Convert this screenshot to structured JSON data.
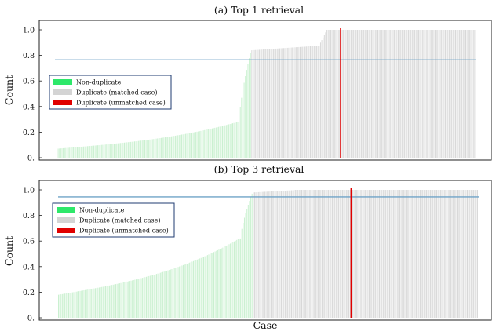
{
  "xlabel": "Case",
  "chart_data": [
    {
      "type": "bar",
      "title": "(a) Top 1 retrieval",
      "ylabel": "Count",
      "ylim": [
        0,
        1.0
      ],
      "yticks": [
        "0.",
        "0.2",
        "0.4",
        "0.6",
        "0.8",
        "1.0"
      ],
      "ytick_values": [
        0,
        0.2,
        0.4,
        0.6,
        0.8,
        1.0
      ],
      "n_cases": 330,
      "series": [
        {
          "name": "Non-duplicate",
          "color": "#c9f0cf",
          "case_range": [
            1,
            153
          ],
          "start_value": 0.07,
          "end_value": 0.28,
          "jump_end_value": 0.82
        },
        {
          "name": "Duplicate (matched case)",
          "color": "#d8d8d8",
          "case_range": [
            154,
            330
          ],
          "start_value": 0.84,
          "end_value": 0.88,
          "plateau_value": 1.0
        }
      ],
      "unmatched_case_line": {
        "name": "Duplicate (unmatched case)",
        "color": "#e00000",
        "case_position": 224
      },
      "reference_line": {
        "value": 0.765,
        "color": "#6fa3c7"
      },
      "legend": {
        "placement": "left-middle",
        "items": [
          {
            "label": "Non-duplicate",
            "color": "#2ee86a"
          },
          {
            "label": "Duplicate (matched case)",
            "color": "#d4d4d4"
          },
          {
            "label": "Duplicate (unmatched case)",
            "color": "#e00000"
          }
        ]
      }
    },
    {
      "type": "bar",
      "title": "(b) Top 3 retrieval",
      "ylabel": "Count",
      "ylim": [
        0,
        1.0
      ],
      "yticks": [
        "0.",
        "0.2",
        "0.4",
        "0.6",
        "0.8",
        "1.0"
      ],
      "ytick_values": [
        0,
        0.2,
        0.4,
        0.6,
        0.8,
        1.0
      ],
      "n_cases": 330,
      "series": [
        {
          "name": "Non-duplicate",
          "color": "#c9f0cf",
          "case_range": [
            1,
            153
          ],
          "start_value": 0.18,
          "end_value": 0.62,
          "jump_end_value": 0.97
        },
        {
          "name": "Duplicate (matched case)",
          "color": "#d8d8d8",
          "case_range": [
            154,
            330
          ],
          "start_value": 0.98,
          "end_value": 1.0,
          "plateau_value": 1.0
        }
      ],
      "unmatched_case_line": {
        "name": "Duplicate (unmatched case)",
        "color": "#e00000",
        "case_position": 231
      },
      "reference_line": {
        "value": 0.945,
        "color": "#6fa3c7"
      },
      "legend": {
        "placement": "left-upper",
        "items": [
          {
            "label": "Non-duplicate",
            "color": "#2ee86a"
          },
          {
            "label": "Duplicate (matched case)",
            "color": "#d4d4d4"
          },
          {
            "label": "Duplicate (unmatched case)",
            "color": "#e00000"
          }
        ]
      }
    }
  ]
}
